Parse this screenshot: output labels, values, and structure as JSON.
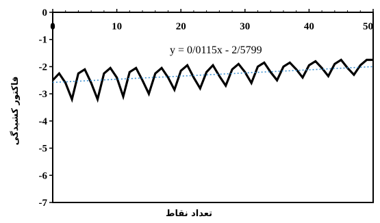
{
  "chart_data": {
    "type": "line",
    "title": "",
    "xlabel": "تعداد نقاط",
    "ylabel": "فاکتور کشیدگی",
    "xlim": [
      0,
      50
    ],
    "ylim": [
      -7,
      0
    ],
    "x_ticks": [
      "0",
      "10",
      "20",
      "30",
      "40",
      "50"
    ],
    "y_ticks": [
      "0",
      "-1",
      "-2",
      "-3",
      "-4",
      "-5",
      "-6",
      "-7"
    ],
    "grid": false,
    "legend": "none",
    "annotation": "y = 0/0115x - 2/5799",
    "colors": {
      "data_line": "#000000",
      "trend_line": "#3a8fd0",
      "axes": "#000000"
    },
    "series": [
      {
        "style": "solid",
        "x": [
          0,
          1,
          2,
          3,
          4,
          5,
          6,
          7,
          8,
          9,
          10,
          11,
          12,
          13,
          14,
          15,
          16,
          17,
          18,
          19,
          20,
          21,
          22,
          23,
          24,
          25,
          26,
          27,
          28,
          29,
          30,
          31,
          32,
          33,
          34,
          35,
          36,
          37,
          38,
          39,
          40,
          41,
          42,
          43,
          44,
          45,
          46,
          47,
          48,
          49,
          50
        ],
        "y": [
          -2.5,
          -2.25,
          -2.6,
          -3.2,
          -2.25,
          -2.1,
          -2.6,
          -3.2,
          -2.25,
          -2.05,
          -2.4,
          -3.1,
          -2.2,
          -2.05,
          -2.5,
          -3.0,
          -2.25,
          -2.05,
          -2.4,
          -2.85,
          -2.15,
          -1.95,
          -2.4,
          -2.8,
          -2.2,
          -1.95,
          -2.35,
          -2.7,
          -2.1,
          -1.9,
          -2.2,
          -2.6,
          -2.0,
          -1.85,
          -2.2,
          -2.5,
          -2.0,
          -1.85,
          -2.1,
          -2.4,
          -1.95,
          -1.8,
          -2.05,
          -2.35,
          -1.9,
          -1.75,
          -2.05,
          -2.3,
          -1.95,
          -1.75,
          -1.75
        ]
      },
      {
        "style": "dotted",
        "x": [
          0,
          50
        ],
        "y": [
          -2.58,
          -2.0
        ]
      }
    ]
  }
}
